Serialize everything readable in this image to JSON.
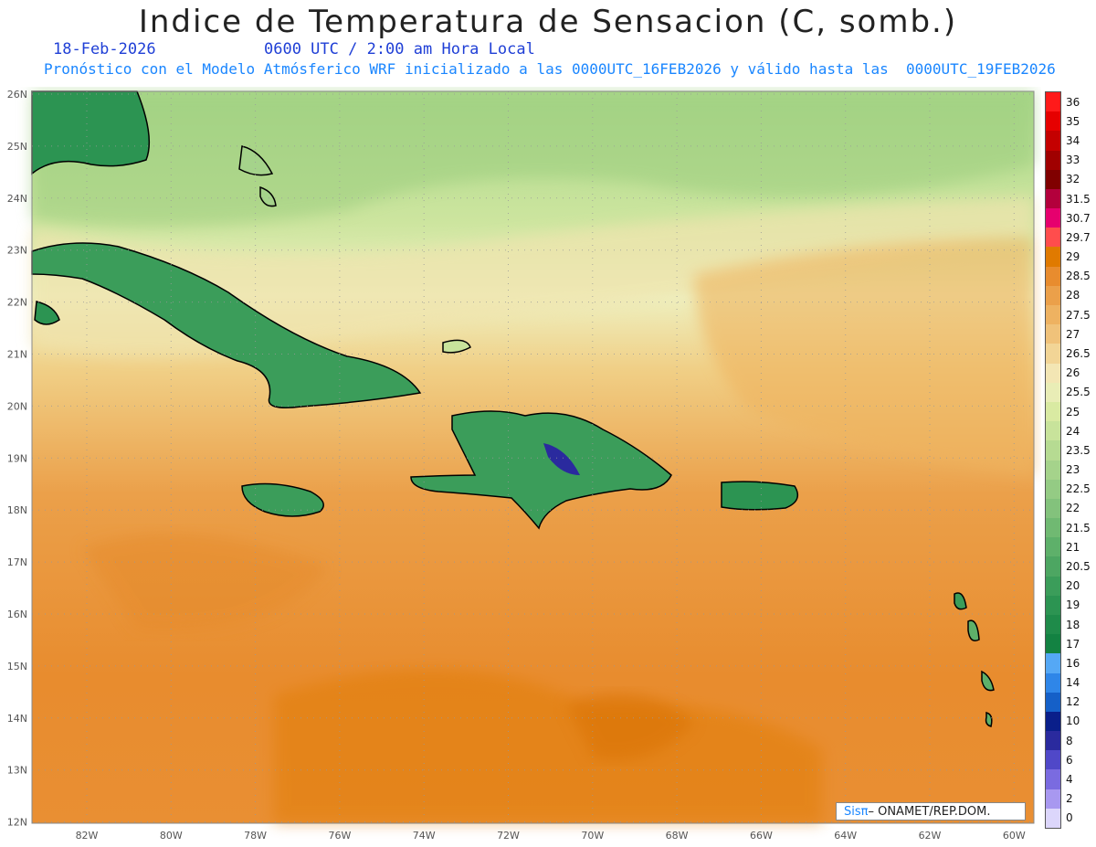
{
  "title": "Indice de Temperatura de Sensacion (C, somb.)",
  "date": "18-Feb-2026",
  "time": "0600 UTC / 2:00 am Hora Local",
  "model_info": "Pronóstico con el Modelo Atmósferico WRF inicializado a las 0000UTC_16FEB2026 y válido hasta las  0000UTC_19FEB2026",
  "credit": {
    "logo_text": "Sisπ",
    "text": "– ONAMET/REP.DOM."
  },
  "lat_labels": [
    "26N",
    "25N",
    "24N",
    "23N",
    "22N",
    "21N",
    "20N",
    "19N",
    "18N",
    "17N",
    "16N",
    "15N",
    "14N",
    "13N",
    "12N"
  ],
  "lon_labels": [
    "82W",
    "80W",
    "78W",
    "76W",
    "74W",
    "72W",
    "70W",
    "68W",
    "66W",
    "64W",
    "62W",
    "60W"
  ],
  "colorbar": [
    {
      "label": "36",
      "color": "#ff1a1a"
    },
    {
      "label": "35",
      "color": "#e60000"
    },
    {
      "label": "34",
      "color": "#c40000"
    },
    {
      "label": "33",
      "color": "#a00000"
    },
    {
      "label": "32",
      "color": "#800000"
    },
    {
      "label": "31.5",
      "color": "#b3003c"
    },
    {
      "label": "30.7",
      "color": "#e6006e"
    },
    {
      "label": "29.7",
      "color": "#ff4d4d"
    },
    {
      "label": "29",
      "color": "#e07a00"
    },
    {
      "label": "28.5",
      "color": "#e88c2e"
    },
    {
      "label": "28",
      "color": "#eba04a"
    },
    {
      "label": "27.5",
      "color": "#eeb261"
    },
    {
      "label": "27",
      "color": "#f0c27a"
    },
    {
      "label": "26.5",
      "color": "#f2d596"
    },
    {
      "label": "26",
      "color": "#f3e6b4"
    },
    {
      "label": "25.5",
      "color": "#e9edb6"
    },
    {
      "label": "25",
      "color": "#d9eaa2"
    },
    {
      "label": "24",
      "color": "#c8e39b"
    },
    {
      "label": "23.5",
      "color": "#b6db92"
    },
    {
      "label": "23",
      "color": "#a5d38b"
    },
    {
      "label": "22.5",
      "color": "#94cb84"
    },
    {
      "label": "22",
      "color": "#83c27c"
    },
    {
      "label": "21.5",
      "color": "#70b972"
    },
    {
      "label": "21",
      "color": "#5eb06a"
    },
    {
      "label": "20.5",
      "color": "#4da662"
    },
    {
      "label": "20",
      "color": "#3b9d5a"
    },
    {
      "label": "19",
      "color": "#2c9452"
    },
    {
      "label": "18",
      "color": "#1f8b4a"
    },
    {
      "label": "17",
      "color": "#138242"
    },
    {
      "label": "16",
      "color": "#55a8f5"
    },
    {
      "label": "14",
      "color": "#2f86e8"
    },
    {
      "label": "12",
      "color": "#1560c8"
    },
    {
      "label": "10",
      "color": "#0a1f8a"
    },
    {
      "label": "8",
      "color": "#2a2a9e"
    },
    {
      "label": "6",
      "color": "#5048c8"
    },
    {
      "label": "4",
      "color": "#7a6be0"
    },
    {
      "label": "2",
      "color": "#a898f0"
    },
    {
      "label": "0",
      "color": "#dcd6fb"
    }
  ]
}
